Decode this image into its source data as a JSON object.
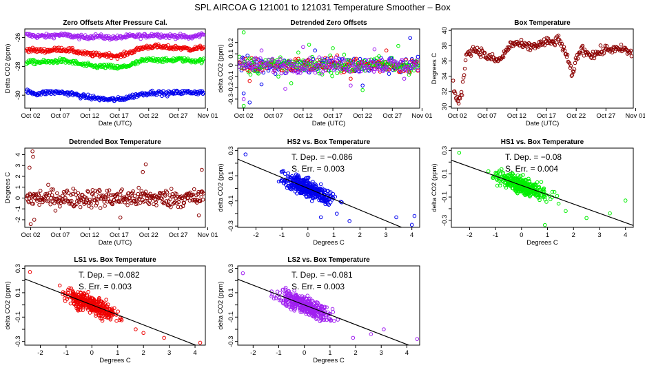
{
  "title": "SPL   AIRCOA G   121001 to 121031   Temperature Smoother – Box",
  "colors": {
    "blue": "#0000ee",
    "red": "#ee0000",
    "green": "#00ee00",
    "purple": "#a020f0",
    "brown": "#8b0000",
    "axis": "#000000"
  },
  "chart_data": [
    {
      "id": "zero-offsets",
      "type": "scatter",
      "title": "Zero Offsets After Pressure Cal.",
      "xlabel": "Date (UTC)",
      "ylabel": "Delta CO2 (ppm)",
      "xlim": [
        1,
        31.6
      ],
      "ylim": [
        -30.9,
        -25.4
      ],
      "xticks": [
        2,
        7,
        12,
        17,
        22,
        27,
        32
      ],
      "xticklabels": [
        "Oct 02",
        "Oct 07",
        "Oct 12",
        "Oct 17",
        "Oct 22",
        "Oct 27",
        "Nov 01"
      ],
      "yticks": [
        -30,
        -28,
        -26
      ],
      "yticklabels": [
        "-30",
        "-28",
        "-26"
      ],
      "series": [
        {
          "name": "purple",
          "color": "#a020f0",
          "x": [
            1,
            3,
            5,
            7,
            9,
            11,
            13,
            15,
            17,
            19,
            21,
            23,
            25,
            27,
            29,
            31
          ],
          "y": [
            -25.8,
            -25.9,
            -25.9,
            -25.8,
            -25.9,
            -26.0,
            -25.9,
            -26.0,
            -26.0,
            -25.9,
            -25.9,
            -25.8,
            -25.9,
            -25.9,
            -26.0,
            -25.8
          ]
        },
        {
          "name": "red",
          "color": "#ee0000",
          "x": [
            1,
            3,
            5,
            7,
            9,
            11,
            13,
            15,
            17,
            19,
            21,
            23,
            25,
            27,
            29,
            31
          ],
          "y": [
            -26.8,
            -26.9,
            -26.9,
            -26.8,
            -26.9,
            -27.1,
            -27.2,
            -27.2,
            -27.3,
            -27.0,
            -26.7,
            -26.6,
            -26.7,
            -26.7,
            -26.8,
            -26.7
          ]
        },
        {
          "name": "green",
          "color": "#00ee00",
          "x": [
            1,
            3,
            5,
            7,
            9,
            11,
            13,
            15,
            17,
            19,
            21,
            23,
            25,
            27,
            29,
            31
          ],
          "y": [
            -27.7,
            -27.7,
            -27.7,
            -27.6,
            -27.7,
            -27.9,
            -28.0,
            -28.0,
            -28.1,
            -27.9,
            -27.6,
            -27.5,
            -27.6,
            -27.5,
            -27.6,
            -27.6
          ]
        },
        {
          "name": "blue",
          "color": "#0000ee",
          "x": [
            1,
            3,
            5,
            7,
            9,
            11,
            13,
            15,
            17,
            19,
            21,
            23,
            25,
            27,
            29,
            31
          ],
          "y": [
            -29.7,
            -29.9,
            -29.8,
            -29.8,
            -29.9,
            -30.1,
            -30.2,
            -30.3,
            -30.3,
            -30.1,
            -29.9,
            -29.8,
            -29.9,
            -29.8,
            -29.8,
            -29.8
          ]
        }
      ]
    },
    {
      "id": "detrended-zero-offsets",
      "type": "scatter",
      "title": "Detrended Zero Offsets",
      "xlabel": "Date (UTC)",
      "ylabel": "delta CO2 (ppm)",
      "xlim": [
        1,
        31.6
      ],
      "ylim": [
        -0.38,
        0.32
      ],
      "xticks": [
        2,
        7,
        12,
        17,
        22,
        27,
        32
      ],
      "xticklabels": [
        "Oct 02",
        "Oct 07",
        "Oct 12",
        "Oct 17",
        "Oct 22",
        "Oct 27",
        "Nov 01"
      ],
      "yticks": [
        -0.3,
        -0.2,
        -0.1,
        0,
        0.1,
        0.2
      ],
      "yticklabels": [
        "-0.3",
        "-0.2",
        "-0.1",
        "0",
        "0.1",
        "0.2"
      ],
      "series": [
        {
          "name": "blue",
          "color": "#0000ee",
          "spread": 0.08,
          "outliers": [
            [
              2,
              -0.25
            ],
            [
              3,
              -0.33
            ],
            [
              5,
              -0.17
            ],
            [
              14,
              0.13
            ],
            [
              22,
              -0.18
            ],
            [
              30,
              0.24
            ]
          ]
        },
        {
          "name": "red",
          "color": "#ee0000",
          "spread": 0.07,
          "outliers": [
            [
              3,
              -0.14
            ],
            [
              20,
              -0.12
            ],
            [
              26,
              0.13
            ]
          ]
        },
        {
          "name": "green",
          "color": "#00ee00",
          "spread": 0.08,
          "outliers": [
            [
              2,
              0.29
            ],
            [
              2,
              -0.36
            ],
            [
              10,
              -0.16
            ],
            [
              13,
              0.18
            ],
            [
              17,
              0.15
            ],
            [
              22,
              -0.22
            ],
            [
              28,
              0.17
            ]
          ]
        },
        {
          "name": "purple",
          "color": "#a020f0",
          "spread": 0.07,
          "outliers": [
            [
              2,
              -0.3
            ],
            [
              5,
              0.13
            ],
            [
              9,
              -0.21
            ],
            [
              12,
              0.16
            ],
            [
              20,
              -0.18
            ],
            [
              24,
              0.14
            ],
            [
              29,
              -0.12
            ]
          ]
        }
      ]
    },
    {
      "id": "box-temperature",
      "type": "scatter",
      "title": "Box Temperature",
      "xlabel": "Date (UTC)",
      "ylabel": "Degrees C",
      "xlim": [
        1,
        31.6
      ],
      "ylim": [
        29.8,
        40.2
      ],
      "xticks": [
        2,
        7,
        12,
        17,
        22,
        27,
        32
      ],
      "xticklabels": [
        "Oct 02",
        "Oct 07",
        "Oct 12",
        "Oct 17",
        "Oct 22",
        "Oct 27",
        "Nov 01"
      ],
      "yticks": [
        30,
        32,
        34,
        36,
        38,
        40
      ],
      "yticklabels": [
        "30",
        "32",
        "34",
        "36",
        "38",
        "40"
      ],
      "series": [
        {
          "name": "box temperature",
          "color": "#8b0000",
          "x": [
            1.3,
            1.8,
            2.3,
            2.8,
            3.2,
            3.6,
            4,
            5,
            6,
            7,
            8,
            9,
            10,
            11,
            12,
            13,
            14,
            15,
            16,
            17,
            18,
            19,
            20,
            21,
            21.5,
            22,
            23,
            24,
            25,
            26,
            27,
            28,
            29,
            30,
            31
          ],
          "y": [
            33,
            31,
            30.5,
            32,
            35,
            37,
            37.3,
            37.5,
            37.2,
            36.5,
            36.3,
            36,
            37,
            38.2,
            38.3,
            38,
            37.8,
            38,
            38.2,
            38.5,
            38.4,
            38.8,
            37.5,
            35,
            34,
            36.5,
            37.6,
            37,
            36.8,
            37.2,
            37.5,
            37.6,
            37.4,
            37.6,
            37
          ]
        }
      ]
    },
    {
      "id": "detrended-box-temperature",
      "type": "scatter",
      "title": "Detrended Box Temperature",
      "xlabel": "Date (UTC)",
      "ylabel": "Degrees C",
      "xlim": [
        1,
        31.6
      ],
      "ylim": [
        -2.7,
        4.6
      ],
      "xticks": [
        2,
        7,
        12,
        17,
        22,
        27,
        32
      ],
      "xticklabels": [
        "Oct 02",
        "Oct 07",
        "Oct 12",
        "Oct 17",
        "Oct 22",
        "Oct 27",
        "Nov 01"
      ],
      "yticks": [
        -2,
        -1,
        0,
        1,
        2,
        3,
        4
      ],
      "yticklabels": [
        "-2",
        "-1",
        "0",
        "1",
        "2",
        "3",
        "4"
      ],
      "series": [
        {
          "name": "detrended temperature",
          "color": "#8b0000",
          "spread": 0.9,
          "outliers": [
            [
              2.3,
              4.3
            ],
            [
              2.4,
              3.8
            ],
            [
              1.8,
              2.8
            ],
            [
              2.0,
              -2.4
            ],
            [
              2.6,
              -2.0
            ],
            [
              21.5,
              3.1
            ],
            [
              21.0,
              2.4
            ],
            [
              17.2,
              -1.8
            ],
            [
              31,
              2.6
            ],
            [
              30.5,
              -1.6
            ]
          ]
        }
      ]
    },
    {
      "id": "hs2-vs-box",
      "type": "scatter",
      "title": "HS2 vs. Box Temperature",
      "xlabel": "Degrees C",
      "ylabel": "delta CO2 (ppm)",
      "xlim": [
        -2.7,
        4.3
      ],
      "ylim": [
        -0.31,
        0.32
      ],
      "xticks": [
        -2,
        -1,
        0,
        1,
        2,
        3,
        4
      ],
      "xticklabels": [
        "-2",
        "-1",
        "0",
        "1",
        "2",
        "3",
        "4"
      ],
      "yticks": [
        -0.3,
        -0.2,
        -0.1,
        0,
        0.1,
        0.2,
        0.3
      ],
      "yticklabels": [
        "-0.3",
        "",
        "-0.1",
        "",
        "0.1",
        "",
        "0.3"
      ],
      "tdep_label": "T. Dep. =  −0.086",
      "serr_label": "S. Err. =  0.003",
      "slope": -0.086,
      "intercept": 0.0,
      "color": "#0000ee",
      "outliers": [
        [
          -2.4,
          0.27
        ],
        [
          4.0,
          -0.29
        ],
        [
          4.1,
          -0.22
        ],
        [
          3.4,
          -0.23
        ],
        [
          1.6,
          -0.26
        ],
        [
          0.5,
          -0.23
        ]
      ]
    },
    {
      "id": "hs1-vs-box",
      "type": "scatter",
      "title": "HS1 vs. Box Temperature",
      "xlabel": "Degrees C",
      "ylabel": "delta CO2 (ppm)",
      "xlim": [
        -2.7,
        4.3
      ],
      "ylim": [
        -0.36,
        0.32
      ],
      "xticks": [
        -2,
        -1,
        0,
        1,
        2,
        3,
        4
      ],
      "xticklabels": [
        "-2",
        "-1",
        "0",
        "1",
        "2",
        "3",
        "4"
      ],
      "yticks": [
        -0.3,
        -0.2,
        -0.1,
        0,
        0.1,
        0.2,
        0.3
      ],
      "yticklabels": [
        "-0.3",
        "",
        "-0.1",
        "",
        "0.1",
        "",
        "0.3"
      ],
      "tdep_label": "T. Dep. =  −0.08",
      "serr_label": "S. Err. =  0.004",
      "slope": -0.08,
      "intercept": 0.0,
      "color": "#00ee00",
      "outliers": [
        [
          -2.4,
          0.28
        ],
        [
          4.0,
          -0.13
        ],
        [
          3.4,
          -0.24
        ],
        [
          2.5,
          -0.28
        ],
        [
          0.9,
          -0.34
        ],
        [
          1.7,
          -0.22
        ]
      ]
    },
    {
      "id": "ls1-vs-box",
      "type": "scatter",
      "title": "LS1 vs. Box Temperature",
      "xlabel": "Degrees C",
      "ylabel": "delta CO2 (ppm)",
      "xlim": [
        -2.6,
        4.4
      ],
      "ylim": [
        -0.33,
        0.32
      ],
      "xticks": [
        -2,
        -1,
        0,
        1,
        2,
        3,
        4
      ],
      "xticklabels": [
        "-2",
        "-1",
        "0",
        "1",
        "2",
        "3",
        "4"
      ],
      "yticks": [
        -0.3,
        -0.2,
        -0.1,
        0,
        0.1,
        0.2,
        0.3
      ],
      "yticklabels": [
        "-0.3",
        "",
        "-0.1",
        "",
        "0.1",
        "",
        "0.3"
      ],
      "tdep_label": "T. Dep. =  −0.082",
      "serr_label": "S. Err. =  0.003",
      "slope": -0.082,
      "intercept": 0.0,
      "color": "#ee0000",
      "outliers": [
        [
          -2.4,
          0.27
        ],
        [
          4.2,
          -0.31
        ],
        [
          2.8,
          -0.27
        ],
        [
          2.0,
          -0.23
        ],
        [
          1.7,
          -0.2
        ]
      ]
    },
    {
      "id": "ls2-vs-box",
      "type": "scatter",
      "title": "LS2 vs. Box Temperature",
      "xlabel": "Degrees C",
      "ylabel": "delta CO2 (ppm)",
      "xlim": [
        -2.6,
        4.5
      ],
      "ylim": [
        -0.33,
        0.32
      ],
      "xticks": [
        -2,
        -1,
        0,
        1,
        2,
        3,
        4
      ],
      "xticklabels": [
        "-2",
        "-1",
        "0",
        "1",
        "2",
        "3",
        "4"
      ],
      "yticks": [
        -0.3,
        -0.2,
        -0.1,
        0,
        0.1,
        0.2,
        0.3
      ],
      "yticklabels": [
        "-0.3",
        "",
        "-0.1",
        "",
        "0.1",
        "",
        "0.3"
      ],
      "tdep_label": "T. Dep. =  −0.081",
      "serr_label": "S. Err. =  0.003",
      "slope": -0.081,
      "intercept": 0.0,
      "color": "#a020f0",
      "outliers": [
        [
          -2.4,
          0.26
        ],
        [
          4.4,
          -0.28
        ],
        [
          2.6,
          -0.24
        ],
        [
          1.9,
          -0.27
        ],
        [
          3.1,
          -0.2
        ]
      ]
    }
  ]
}
